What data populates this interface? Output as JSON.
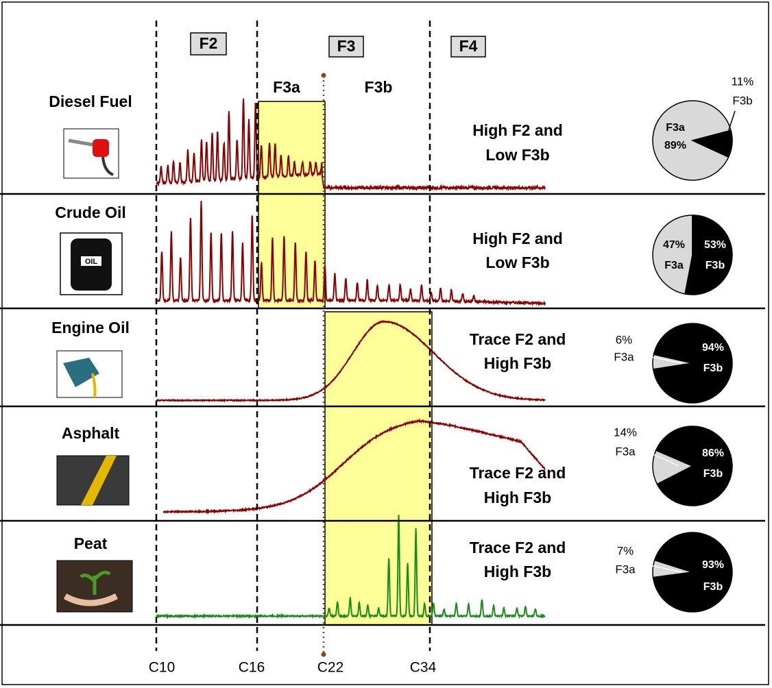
{
  "header": {
    "fractions": [
      "F2",
      "F3",
      "F4"
    ],
    "subfractions": [
      "F3a",
      "F3b"
    ]
  },
  "carbon_markers": [
    "C10",
    "C16",
    "C22",
    "C34"
  ],
  "rows": [
    {
      "name": "Diesel Fuel",
      "description": [
        "High F2 and",
        "Low F3b"
      ],
      "pie": {
        "type": "pie",
        "categories": [
          "F3a",
          "F3b"
        ],
        "values": [
          89,
          11
        ],
        "value_labels": [
          "89%",
          "11%"
        ]
      }
    },
    {
      "name": "Crude Oil",
      "description": [
        "High F2 and",
        "Low F3b"
      ],
      "pie": {
        "type": "pie",
        "categories": [
          "F3a",
          "F3b"
        ],
        "values": [
          47,
          53
        ],
        "value_labels": [
          "47%",
          "53%"
        ]
      }
    },
    {
      "name": "Engine Oil",
      "description": [
        "Trace F2 and",
        "High F3b"
      ],
      "pie": {
        "type": "pie",
        "categories": [
          "F3a",
          "F3b"
        ],
        "values": [
          6,
          94
        ],
        "value_labels": [
          "6%",
          "94%"
        ]
      }
    },
    {
      "name": "Asphalt",
      "description": [
        "Trace F2 and",
        "High F3b"
      ],
      "pie": {
        "type": "pie",
        "categories": [
          "F3a",
          "F3b"
        ],
        "values": [
          14,
          86
        ],
        "value_labels": [
          "14%",
          "86%"
        ]
      }
    },
    {
      "name": "Peat",
      "description": [
        "Trace F2 and",
        "High F3b"
      ],
      "pie": {
        "type": "pie",
        "categories": [
          "F3a",
          "F3b"
        ],
        "values": [
          7,
          93
        ],
        "value_labels": [
          "7%",
          "93%"
        ]
      }
    }
  ]
}
